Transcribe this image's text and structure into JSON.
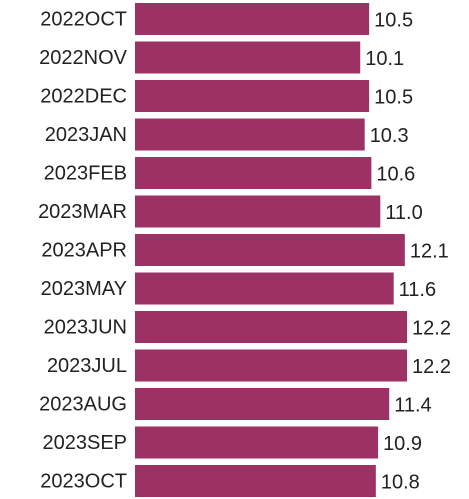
{
  "chart_data": {
    "type": "bar",
    "orientation": "horizontal",
    "categories": [
      "2022OCT",
      "2022NOV",
      "2022DEC",
      "2023JAN",
      "2023FEB",
      "2023MAR",
      "2023APR",
      "2023MAY",
      "2023JUN",
      "2023JUL",
      "2023AUG",
      "2023SEP",
      "2023OCT"
    ],
    "values": [
      10.5,
      10.1,
      10.5,
      10.3,
      10.6,
      11.0,
      12.1,
      11.6,
      12.2,
      12.2,
      11.4,
      10.9,
      10.8
    ],
    "value_labels": [
      "10.5",
      "10.1",
      "10.5",
      "10.3",
      "10.6",
      "11.0",
      "12.1",
      "11.6",
      "12.2",
      "12.2",
      "11.4",
      "10.9",
      "10.8"
    ],
    "color": "#9c3163"
  }
}
